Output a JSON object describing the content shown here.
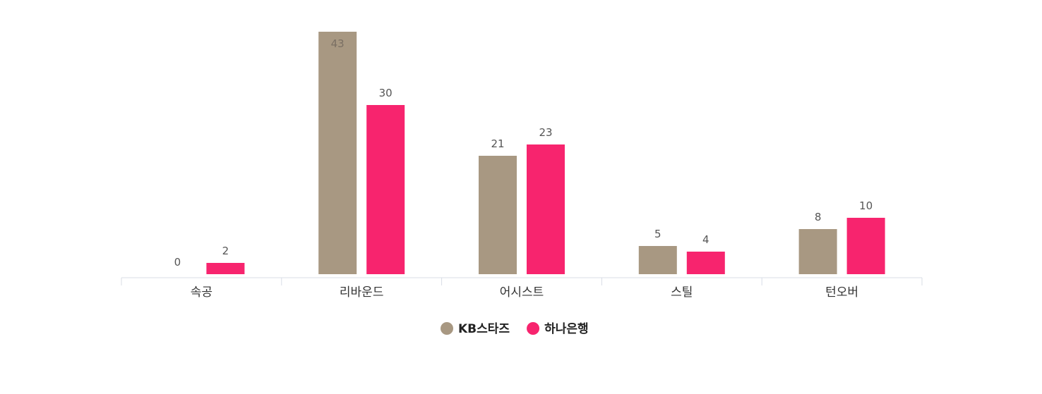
{
  "chart_data": {
    "type": "bar",
    "categories": [
      "속공",
      "리바운드",
      "어시스트",
      "스틸",
      "턴오버"
    ],
    "series": [
      {
        "name": "KB스타즈",
        "color": "#a89882",
        "values": [
          0,
          43,
          21,
          5,
          8
        ]
      },
      {
        "name": "하나은행",
        "color": "#f7246e",
        "values": [
          2,
          30,
          23,
          4,
          10
        ]
      }
    ],
    "title": "",
    "xlabel": "",
    "ylabel": "",
    "ylim": [
      0,
      43
    ],
    "grid": false,
    "legend": "bottom-center",
    "data_labels": true
  }
}
